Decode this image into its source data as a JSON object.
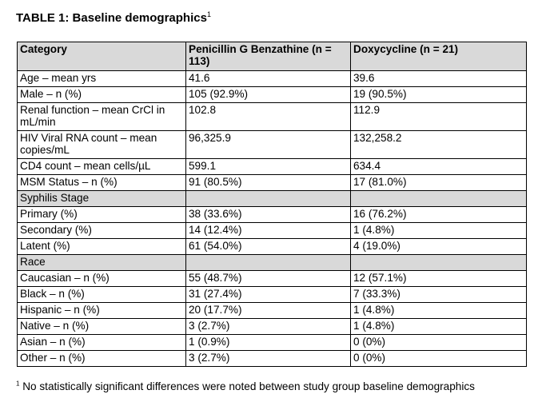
{
  "title": {
    "text": "TABLE 1: Baseline demographics",
    "marker": "1"
  },
  "table": {
    "headers": [
      "Category",
      "Penicillin G Benzathine (n = 113)",
      "Doxycycline (n = 21)"
    ],
    "rows": [
      {
        "type": "data",
        "cells": [
          "Age – mean yrs",
          "41.6",
          "39.6"
        ]
      },
      {
        "type": "data",
        "cells": [
          "Male – n (%)",
          "105 (92.9%)",
          "19 (90.5%)"
        ]
      },
      {
        "type": "data",
        "tall": true,
        "cells": [
          "Renal function – mean CrCl in mL/min",
          "102.8",
          "112.9"
        ]
      },
      {
        "type": "data",
        "tall": true,
        "cells": [
          "HIV Viral RNA count – mean copies/mL",
          "96,325.9",
          "132,258.2"
        ]
      },
      {
        "type": "data",
        "cells": [
          "CD4 count – mean cells/µL",
          "599.1",
          "634.4"
        ]
      },
      {
        "type": "data",
        "cells": [
          "MSM Status – n (%)",
          "91 (80.5%)",
          "17 (81.0%)"
        ]
      },
      {
        "type": "section",
        "cells": [
          "Syphilis Stage",
          "",
          ""
        ]
      },
      {
        "type": "data",
        "cells": [
          "Primary (%)",
          "38 (33.6%)",
          "16 (76.2%)"
        ]
      },
      {
        "type": "data",
        "cells": [
          "Secondary (%)",
          "14 (12.4%)",
          "1 (4.8%)"
        ]
      },
      {
        "type": "data",
        "cells": [
          "Latent (%)",
          "61 (54.0%)",
          "4 (19.0%)"
        ]
      },
      {
        "type": "section",
        "cells": [
          "Race",
          "",
          ""
        ]
      },
      {
        "type": "data",
        "cells": [
          "Caucasian – n (%)",
          "55 (48.7%)",
          "12 (57.1%)"
        ]
      },
      {
        "type": "data",
        "cells": [
          "Black – n (%)",
          "31 (27.4%)",
          "7 (33.3%)"
        ]
      },
      {
        "type": "data",
        "cells": [
          "Hispanic – n (%)",
          "20 (17.7%)",
          "1 (4.8%)"
        ]
      },
      {
        "type": "data",
        "cells": [
          "Native – n (%)",
          "3 (2.7%)",
          "1 (4.8%)"
        ]
      },
      {
        "type": "data",
        "cells": [
          "Asian – n (%)",
          "1 (0.9%)",
          "0 (0%)"
        ]
      },
      {
        "type": "data",
        "cells": [
          "Other – n (%)",
          "3 (2.7%)",
          "0 (0%)"
        ]
      }
    ],
    "section_color": "#d9d9d9"
  },
  "footnote": {
    "marker": "1",
    "text": "No statistically significant differences were noted between study group baseline demographics"
  }
}
